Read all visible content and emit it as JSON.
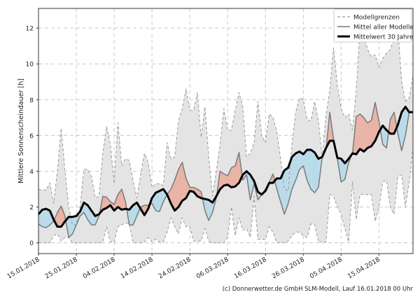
{
  "chart_data": {
    "type": "area",
    "ylabel": "Mittlere Sonnenscheindauer [h]",
    "xlabel": "",
    "ylim": [
      -0.6,
      13.1
    ],
    "xlim_days": [
      0,
      99
    ],
    "yticks": [
      0,
      2,
      4,
      6,
      8,
      10,
      12
    ],
    "xtick_days": [
      0,
      10,
      20,
      30,
      40,
      50,
      60,
      70,
      80,
      90
    ],
    "xtick_labels": [
      "15.01.2018",
      "25.01.2018",
      "04.02.2018",
      "14.02.2018",
      "24.02.2018",
      "06.03.2018",
      "16.03.2018",
      "26.03.2018",
      "05.04.2018",
      "15.04.2018"
    ],
    "grid": true,
    "legend_position": "top-right",
    "legend": [
      "Modellgrenzen",
      "Mittel aller Modelle",
      "Mittelwert 30 Jahre"
    ],
    "footer": "(c) Donnerwetter.de GmbH SLM-Modell, Lauf 16.01.2018 00 Uhr",
    "colors": {
      "range_fill": "#e4e4e4",
      "above": "#e9b3a6",
      "below": "#b9dbe9",
      "bound": "#999999",
      "model_mean": "#7a7a7a",
      "climate": "#000000"
    },
    "series": [
      {
        "name": "Modellgrenzen (max)",
        "values": [
          3.0,
          2.95,
          2.95,
          3.35,
          2.2,
          4.0,
          6.4,
          4.0,
          2.0,
          1.0,
          1.0,
          2.0,
          4.1,
          4.1,
          3.7,
          2.5,
          2.6,
          5.0,
          6.5,
          5.5,
          3.3,
          6.7,
          4.3,
          4.7,
          4.6,
          3.5,
          2.5,
          3.8,
          5.0,
          4.5,
          3.1,
          3.3,
          3.3,
          3.2,
          5.6,
          4.7,
          4.8,
          6.8,
          7.5,
          8.6,
          7.4,
          7.4,
          8.4,
          5.9,
          7.6,
          4.8,
          2.6,
          4.0,
          5.5,
          7.5,
          6.3,
          6.3,
          7.4,
          8.4,
          7.6,
          4.8,
          5.0,
          5.6,
          7.9,
          6.0,
          5.6,
          7.2,
          7.0,
          6.2,
          4.7,
          3.0,
          2.9,
          5.5,
          7.3,
          8.1,
          8.0,
          6.9,
          6.8,
          7.9,
          6.8,
          4.8,
          7.1,
          8.5,
          10.9,
          8.8,
          7.5,
          7.0,
          7.2,
          6.3,
          8.5,
          12.0,
          11.6,
          10.8,
          10.4,
          10.5,
          9.8,
          10.3,
          10.6,
          10.8,
          11.4,
          12.0,
          9.0,
          7.9,
          8.1,
          9.3
        ]
      },
      {
        "name": "Modellgrenzen (min)",
        "values": [
          0,
          0,
          0,
          0,
          0.4,
          0.5,
          0.1,
          0.3,
          0.3,
          0,
          0,
          0,
          0,
          0,
          0,
          0,
          0,
          0.05,
          0.9,
          0.05,
          0.05,
          0.9,
          1.0,
          1.1,
          1.1,
          0,
          0,
          0,
          0.05,
          0.3,
          0.05,
          0.2,
          0.05,
          0.05,
          0.6,
          1.4,
          0.9,
          0.5,
          1.4,
          0.9,
          0.9,
          0.1,
          0.1,
          0.1,
          0.8,
          0.1,
          0,
          0,
          0,
          0,
          0.3,
          2.0,
          0.4,
          1.4,
          0.7,
          0.8,
          0.3,
          2.6,
          0.2,
          0.2,
          0.2,
          0.9,
          0.6,
          0,
          0,
          0,
          0.1,
          0.4,
          0.6,
          0.6,
          0.4,
          0.3,
          1.05,
          1.05,
          0.05,
          0.05,
          0.05,
          2.7,
          2.6,
          2.0,
          1.6,
          0.8,
          0.05,
          3.4,
          1.3,
          2.7,
          2.7,
          2.7,
          2.7,
          1.2,
          2.0,
          3.4,
          3.5,
          2.0,
          1.6,
          3.7,
          3.8,
          2.0,
          3.4,
          5.3
        ]
      },
      {
        "name": "Mittel aller Modelle",
        "values": [
          1.05,
          0.9,
          0.85,
          1.0,
          1.2,
          1.7,
          2.05,
          1.5,
          0.3,
          0.5,
          1.0,
          1.5,
          1.7,
          1.3,
          1.0,
          1.0,
          1.5,
          2.6,
          2.55,
          2.3,
          2.15,
          2.7,
          3.0,
          2.3,
          1.0,
          1.0,
          1.5,
          2.0,
          2.1,
          2.1,
          2.2,
          1.8,
          1.75,
          2.3,
          2.7,
          3.0,
          3.5,
          4.1,
          4.5,
          3.6,
          3.1,
          3.1,
          3.0,
          2.85,
          1.8,
          1.25,
          1.7,
          2.5,
          4.0,
          3.85,
          3.75,
          4.2,
          4.3,
          5.05,
          3.5,
          3.8,
          2.4,
          3.3,
          2.4,
          2.7,
          3.0,
          3.4,
          3.85,
          3.0,
          2.3,
          1.6,
          2.2,
          3.0,
          3.5,
          4.1,
          4.3,
          3.5,
          3.0,
          2.8,
          3.1,
          4.8,
          5.2,
          7.3,
          5.8,
          4.7,
          3.4,
          3.55,
          4.5,
          5.0,
          7.05,
          7.2,
          7.0,
          6.7,
          6.85,
          7.85,
          6.8,
          5.5,
          5.3,
          6.9,
          7.3,
          6.1,
          5.15,
          6.0,
          7.3,
          7.3
        ]
      },
      {
        "name": "Mittelwert 30 Jahre",
        "values": [
          1.6,
          1.85,
          1.9,
          1.8,
          1.3,
          0.9,
          0.9,
          1.2,
          1.45,
          1.45,
          1.5,
          1.75,
          2.25,
          2.1,
          1.8,
          1.5,
          1.6,
          1.85,
          1.95,
          2.1,
          1.8,
          2.0,
          1.85,
          1.9,
          1.85,
          2.1,
          2.25,
          1.9,
          1.55,
          1.9,
          2.5,
          2.8,
          2.9,
          3.0,
          2.7,
          2.2,
          1.8,
          2.0,
          2.35,
          2.5,
          2.9,
          2.85,
          2.6,
          2.5,
          2.45,
          2.4,
          2.25,
          2.6,
          3.0,
          3.2,
          3.25,
          3.1,
          3.15,
          3.35,
          3.8,
          4.0,
          3.8,
          3.45,
          2.85,
          2.7,
          2.9,
          3.35,
          3.35,
          3.6,
          3.6,
          4.05,
          4.2,
          4.8,
          5.0,
          5.1,
          4.95,
          5.2,
          5.2,
          5.05,
          4.7,
          4.8,
          5.3,
          5.7,
          5.7,
          4.75,
          4.7,
          4.45,
          4.7,
          5.0,
          4.95,
          5.25,
          5.1,
          5.3,
          5.4,
          5.7,
          6.2,
          6.55,
          6.3,
          6.1,
          6.1,
          6.6,
          7.3,
          7.6,
          7.3,
          7.3
        ]
      }
    ]
  }
}
